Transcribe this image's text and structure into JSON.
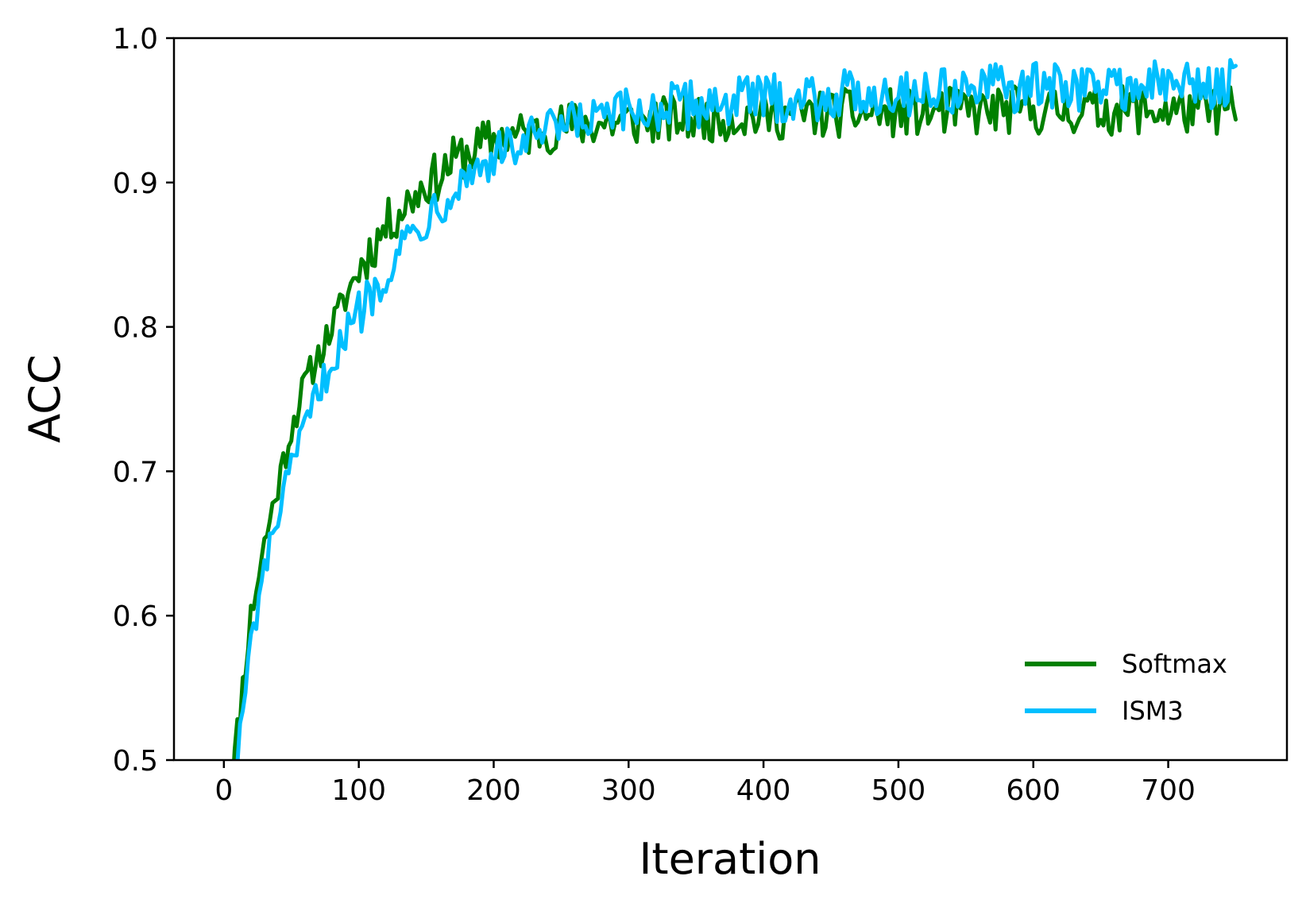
{
  "chart_data": {
    "type": "line",
    "title": "",
    "xlabel": "Iteration",
    "ylabel": "ACC",
    "xlim": [
      -37,
      788
    ],
    "ylim": [
      0.5,
      1.0
    ],
    "xticks": [
      "0",
      "100",
      "200",
      "300",
      "400",
      "500",
      "600",
      "700"
    ],
    "yticks": [
      "0.5",
      "0.6",
      "0.7",
      "0.8",
      "0.9",
      "1.0"
    ],
    "grid": false,
    "legend_position": "lower-right",
    "series": [
      {
        "name": "Softmax",
        "color": "#008000",
        "x": [
          0,
          10,
          20,
          30,
          40,
          50,
          60,
          70,
          80,
          90,
          100,
          110,
          120,
          130,
          140,
          150,
          160,
          170,
          180,
          190,
          200,
          220,
          240,
          260,
          280,
          300,
          320,
          340,
          360,
          380,
          400,
          420,
          440,
          460,
          480,
          500,
          520,
          540,
          560,
          580,
          600,
          620,
          640,
          660,
          680,
          700,
          720,
          740,
          750
        ],
        "y": [
          0.43,
          0.52,
          0.6,
          0.65,
          0.69,
          0.73,
          0.76,
          0.78,
          0.8,
          0.82,
          0.84,
          0.855,
          0.87,
          0.88,
          0.89,
          0.9,
          0.905,
          0.915,
          0.92,
          0.925,
          0.93,
          0.933,
          0.937,
          0.94,
          0.941,
          0.942,
          0.943,
          0.944,
          0.945,
          0.946,
          0.946,
          0.947,
          0.947,
          0.948,
          0.948,
          0.948,
          0.949,
          0.949,
          0.949,
          0.95,
          0.95,
          0.95,
          0.95,
          0.95,
          0.95,
          0.95,
          0.95,
          0.95,
          0.95
        ]
      },
      {
        "name": "ISM3",
        "color": "#00bfff",
        "x": [
          0,
          10,
          20,
          30,
          40,
          50,
          60,
          70,
          80,
          90,
          100,
          110,
          120,
          130,
          140,
          150,
          160,
          170,
          180,
          190,
          200,
          220,
          240,
          260,
          280,
          300,
          320,
          340,
          360,
          380,
          400,
          420,
          440,
          460,
          480,
          500,
          520,
          540,
          560,
          580,
          600,
          620,
          640,
          660,
          680,
          700,
          720,
          740,
          750
        ],
        "y": [
          0.4,
          0.5,
          0.58,
          0.63,
          0.67,
          0.7,
          0.73,
          0.755,
          0.775,
          0.795,
          0.81,
          0.825,
          0.84,
          0.855,
          0.865,
          0.877,
          0.887,
          0.897,
          0.905,
          0.912,
          0.918,
          0.927,
          0.934,
          0.94,
          0.944,
          0.948,
          0.951,
          0.953,
          0.955,
          0.957,
          0.958,
          0.959,
          0.96,
          0.961,
          0.962,
          0.963,
          0.963,
          0.964,
          0.965,
          0.965,
          0.966,
          0.966,
          0.967,
          0.967,
          0.967,
          0.968,
          0.968,
          0.968,
          0.968
        ]
      }
    ]
  }
}
